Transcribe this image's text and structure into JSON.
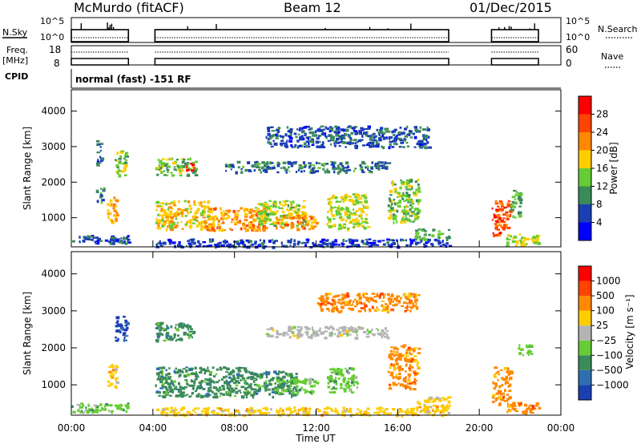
{
  "header": {
    "station_title": "McMurdo (fitACF)",
    "beam_title": "Beam 12",
    "date_title": "01/Dec/2015"
  },
  "top_panels": {
    "nsky_label": "N.Sky",
    "nsearch_label": "N.Search",
    "noise_ticks": [
      "10^5",
      "10^0"
    ],
    "freq_label": "Freq.",
    "freq_unit": "[MHz]",
    "freq_ticks": [
      "18",
      "8"
    ],
    "nave_label": "Nave",
    "nave_ticks": [
      "60",
      "0"
    ],
    "cpid_label": "CPID",
    "cpid_text": "normal (fast) -151 RF",
    "data_intervals_hours": [
      [
        0.0,
        2.8
      ],
      [
        4.1,
        18.5
      ],
      [
        20.6,
        22.9
      ]
    ]
  },
  "chart_data": [
    {
      "type": "heatmap",
      "name": "power",
      "ylabel": "Slant Range [km]",
      "ylim": [
        180,
        4600
      ],
      "yticks": [
        1000,
        2000,
        3000,
        4000
      ],
      "xlim": [
        0,
        24
      ],
      "colorbar": {
        "label": "Power [dB]",
        "range": [
          0,
          32
        ],
        "ticks": [
          "4",
          "8",
          "12",
          "16",
          "20",
          "24",
          "28"
        ],
        "colors": [
          "#0000ff",
          "#1a3fb3",
          "#3b8a5a",
          "#66cc33",
          "#ffcc00",
          "#ff8800",
          "#ff4400",
          "#ff0000"
        ]
      },
      "echo_regions": [
        {
          "t0": 0.0,
          "t1": 2.8,
          "r0": 280,
          "r1": 520,
          "v": 6
        },
        {
          "t0": 1.2,
          "t1": 1.5,
          "r0": 2500,
          "r1": 3200,
          "v": 7
        },
        {
          "t0": 2.1,
          "t1": 2.7,
          "r0": 2200,
          "r1": 2900,
          "v": 14
        },
        {
          "t0": 1.7,
          "t1": 2.2,
          "r0": 900,
          "r1": 1600,
          "v": 20
        },
        {
          "t0": 1.2,
          "t1": 1.6,
          "r0": 1400,
          "r1": 1900,
          "v": 9
        },
        {
          "t0": 4.1,
          "t1": 6.1,
          "r0": 2200,
          "r1": 2700,
          "v": 13
        },
        {
          "t0": 5.6,
          "t1": 6.0,
          "r0": 2350,
          "r1": 2600,
          "v": 28
        },
        {
          "t0": 4.1,
          "t1": 6.8,
          "r0": 700,
          "r1": 1500,
          "v": 18
        },
        {
          "t0": 6.5,
          "t1": 9.5,
          "r0": 650,
          "r1": 1300,
          "v": 21
        },
        {
          "t0": 9.0,
          "t1": 11.5,
          "r0": 800,
          "r1": 1500,
          "v": 15
        },
        {
          "t0": 10.0,
          "t1": 12.0,
          "r0": 700,
          "r1": 1100,
          "v": 22
        },
        {
          "t0": 12.5,
          "t1": 14.5,
          "r0": 700,
          "r1": 1700,
          "v": 16
        },
        {
          "t0": 7.5,
          "t1": 15.5,
          "r0": 2300,
          "r1": 2600,
          "v": 9
        },
        {
          "t0": 9.5,
          "t1": 17.5,
          "r0": 3000,
          "r1": 3600,
          "v": 7
        },
        {
          "t0": 15.5,
          "t1": 17.0,
          "r0": 900,
          "r1": 2100,
          "v": 14
        },
        {
          "t0": 16.8,
          "t1": 18.5,
          "r0": 400,
          "r1": 700,
          "v": 12
        },
        {
          "t0": 4.1,
          "t1": 18.5,
          "r0": 200,
          "r1": 420,
          "v": 5
        },
        {
          "t0": 20.6,
          "t1": 21.5,
          "r0": 500,
          "r1": 1500,
          "v": 26
        },
        {
          "t0": 21.3,
          "t1": 22.9,
          "r0": 250,
          "r1": 550,
          "v": 16
        },
        {
          "t0": 21.5,
          "t1": 22.0,
          "r0": 1000,
          "r1": 1800,
          "v": 12
        }
      ]
    },
    {
      "type": "heatmap",
      "name": "velocity",
      "ylabel": "Slant Range [km]",
      "ylim": [
        180,
        4600
      ],
      "yticks": [
        1000,
        2000,
        3000,
        4000
      ],
      "xlim": [
        0,
        24
      ],
      "xlabel": "Time UT",
      "xticks": [
        "00:00",
        "04:00",
        "08:00",
        "12:00",
        "16:00",
        "20:00",
        "00:00"
      ],
      "colorbar": {
        "label": "Velocity [m s⁻¹]",
        "ticks": [
          "1000",
          "500",
          "100",
          "25",
          "−25",
          "−100",
          "−500",
          "−1000"
        ],
        "colors": [
          "#1a3fb3",
          "#2e6fb0",
          "#3b8a5a",
          "#66cc33",
          "#b4b4b4",
          "#ffcc00",
          "#ff8800",
          "#ff4400",
          "#ff0000"
        ]
      },
      "echo_regions": [
        {
          "t0": 0.0,
          "t1": 2.8,
          "r0": 280,
          "r1": 520,
          "c": 3
        },
        {
          "t0": 2.1,
          "t1": 2.7,
          "r0": 2200,
          "r1": 2900,
          "c": 0
        },
        {
          "t0": 1.7,
          "t1": 2.2,
          "r0": 900,
          "r1": 1600,
          "c": 5
        },
        {
          "t0": 4.1,
          "t1": 6.0,
          "r0": 2200,
          "r1": 2700,
          "c": 2
        },
        {
          "t0": 4.1,
          "t1": 8.5,
          "r0": 700,
          "r1": 1500,
          "c": 2
        },
        {
          "t0": 8.5,
          "t1": 11.0,
          "r0": 700,
          "r1": 1400,
          "c": 2
        },
        {
          "t0": 10.0,
          "t1": 12.0,
          "r0": 800,
          "r1": 1200,
          "c": 3
        },
        {
          "t0": 12.5,
          "t1": 14.0,
          "r0": 800,
          "r1": 1500,
          "c": 3
        },
        {
          "t0": 9.5,
          "t1": 15.5,
          "r0": 2300,
          "r1": 2600,
          "c": 4
        },
        {
          "t0": 12.0,
          "t1": 17.0,
          "r0": 3000,
          "r1": 3500,
          "c": 6
        },
        {
          "t0": 15.5,
          "t1": 17.0,
          "r0": 900,
          "r1": 2100,
          "c": 6
        },
        {
          "t0": 16.8,
          "t1": 18.5,
          "r0": 400,
          "r1": 700,
          "c": 5
        },
        {
          "t0": 4.1,
          "t1": 18.5,
          "r0": 200,
          "r1": 420,
          "c": 5
        },
        {
          "t0": 20.6,
          "t1": 21.5,
          "r0": 500,
          "r1": 1500,
          "c": 6
        },
        {
          "t0": 21.3,
          "t1": 22.9,
          "r0": 250,
          "r1": 550,
          "c": 6
        },
        {
          "t0": 21.8,
          "t1": 22.5,
          "r0": 1800,
          "r1": 2100,
          "c": 3
        }
      ]
    }
  ]
}
